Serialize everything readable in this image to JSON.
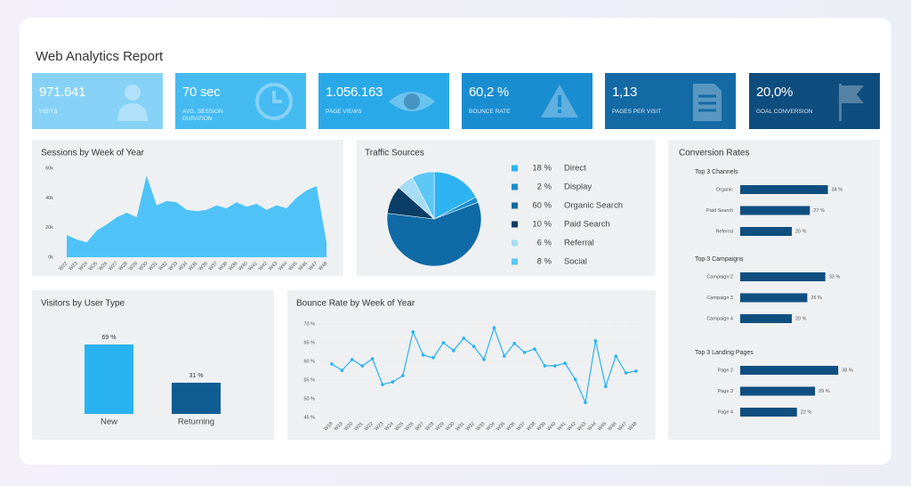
{
  "header": {
    "title": "Web Analytics Report"
  },
  "kpis": [
    {
      "value": "971.641",
      "label": "VISITS"
    },
    {
      "value": "70 sec",
      "label": "AVG. SESSION DURATION"
    },
    {
      "value": "1.056.163",
      "label": "PAGE VIEWS"
    },
    {
      "value": "60,2 %",
      "label": "BOUNCE RATE"
    },
    {
      "value": "1,13",
      "label": "PAGES PER VISIT"
    },
    {
      "value": "20,0%",
      "label": "GOAL CONVERSION"
    }
  ],
  "chart_data": [
    {
      "type": "area",
      "title": "Sessions by Week of Year",
      "color": "#4fc3f7",
      "categories": [
        "W22",
        "W23",
        "W24",
        "W25",
        "W26",
        "W27",
        "W28",
        "W29",
        "W30",
        "W31",
        "W32",
        "W33",
        "W34",
        "W35",
        "W36",
        "W37",
        "W38",
        "W39",
        "W40",
        "W41",
        "W42",
        "W43",
        "W44",
        "W45",
        "W46",
        "W47",
        "W48"
      ],
      "values": [
        15000,
        12000,
        10000,
        18000,
        22000,
        27000,
        30000,
        27000,
        55000,
        35000,
        38000,
        37000,
        32000,
        31000,
        32000,
        35000,
        33000,
        37000,
        34000,
        36000,
        32000,
        35000,
        33000,
        40000,
        45000,
        48000,
        10000
      ],
      "ylim": [
        0,
        60000
      ],
      "yticks": [
        {
          "value": 0,
          "label": "0k"
        },
        {
          "value": 20000,
          "label": "20k"
        },
        {
          "value": 40000,
          "label": "40k"
        },
        {
          "value": 60000,
          "label": "60k"
        }
      ]
    },
    {
      "type": "pie",
      "title": "Traffic Sources",
      "categories": [
        "Direct",
        "Display",
        "Organic Search",
        "Paid Search",
        "Referral",
        "Social"
      ],
      "values": [
        18,
        2,
        60,
        10,
        6,
        8
      ],
      "value_labels": [
        "18 %",
        "2 %",
        "60 %",
        "10 %",
        "6 %",
        "8 %"
      ],
      "colors": [
        "#2eb3f2",
        "#1c8ed0",
        "#0f6aa6",
        "#0b3e66",
        "#a7dcf6",
        "#5cc6f5"
      ]
    },
    {
      "type": "hbar",
      "title": "Conversion Rates",
      "color": "#0f4f80",
      "groups": [
        {
          "title": "Top 3 Channels",
          "categories": [
            "Organic",
            "Paid Search",
            "Referral"
          ],
          "values": [
            34,
            27,
            20
          ],
          "value_labels": [
            "34 %",
            "27 %",
            "20 %"
          ]
        },
        {
          "title": "Top 3 Campaigns",
          "categories": [
            "Campaign 2",
            "Campaign 3",
            "Campaign 4"
          ],
          "values": [
            33,
            26,
            20
          ],
          "value_labels": [
            "33 %",
            "26 %",
            "20 %"
          ]
        },
        {
          "title": "Top 3 Landing Pages",
          "categories": [
            "Page 2",
            "Page 3",
            "Page 4"
          ],
          "values": [
            38,
            29,
            22
          ],
          "value_labels": [
            "38 %",
            "29 %",
            "22 %"
          ]
        }
      ]
    },
    {
      "type": "bar",
      "title": "Visitors by User Type",
      "categories": [
        "New",
        "Returning"
      ],
      "values": [
        69,
        31
      ],
      "value_labels": [
        "69 %",
        "31 %"
      ],
      "colors": [
        "#29b2f2",
        "#0f5c92"
      ]
    },
    {
      "type": "line",
      "title": "Bounce Rate by Week of Year",
      "color": "#29b2f2",
      "categories": [
        "W18",
        "W19",
        "W20",
        "W21",
        "W22",
        "W23",
        "W24",
        "W25",
        "W26",
        "W27",
        "W28",
        "W29",
        "W30",
        "W31",
        "W32",
        "W33",
        "W34",
        "W35",
        "W36",
        "W37",
        "W38",
        "W39",
        "W40",
        "W41",
        "W42",
        "W43",
        "W44",
        "W45",
        "W46",
        "W47",
        "W48"
      ],
      "values": [
        59.3,
        57.6,
        60.5,
        58.8,
        60.7,
        53.8,
        54.5,
        56.2,
        67.9,
        61.7,
        61.0,
        65.0,
        62.9,
        66.2,
        64.0,
        60.5,
        69.0,
        61.4,
        64.8,
        62.4,
        63.3,
        58.8,
        58.8,
        59.5,
        55.2,
        49.0,
        65.5,
        53.3,
        61.4,
        56.9,
        57.4
      ],
      "ylim": [
        45,
        70
      ],
      "yticks": [
        {
          "value": 45,
          "label": "45 %"
        },
        {
          "value": 50,
          "label": "50 %"
        },
        {
          "value": 55,
          "label": "55 %"
        },
        {
          "value": 60,
          "label": "60 %"
        },
        {
          "value": 65,
          "label": "65 %"
        },
        {
          "value": 70,
          "label": "70 %"
        }
      ],
      "grid": true
    }
  ]
}
